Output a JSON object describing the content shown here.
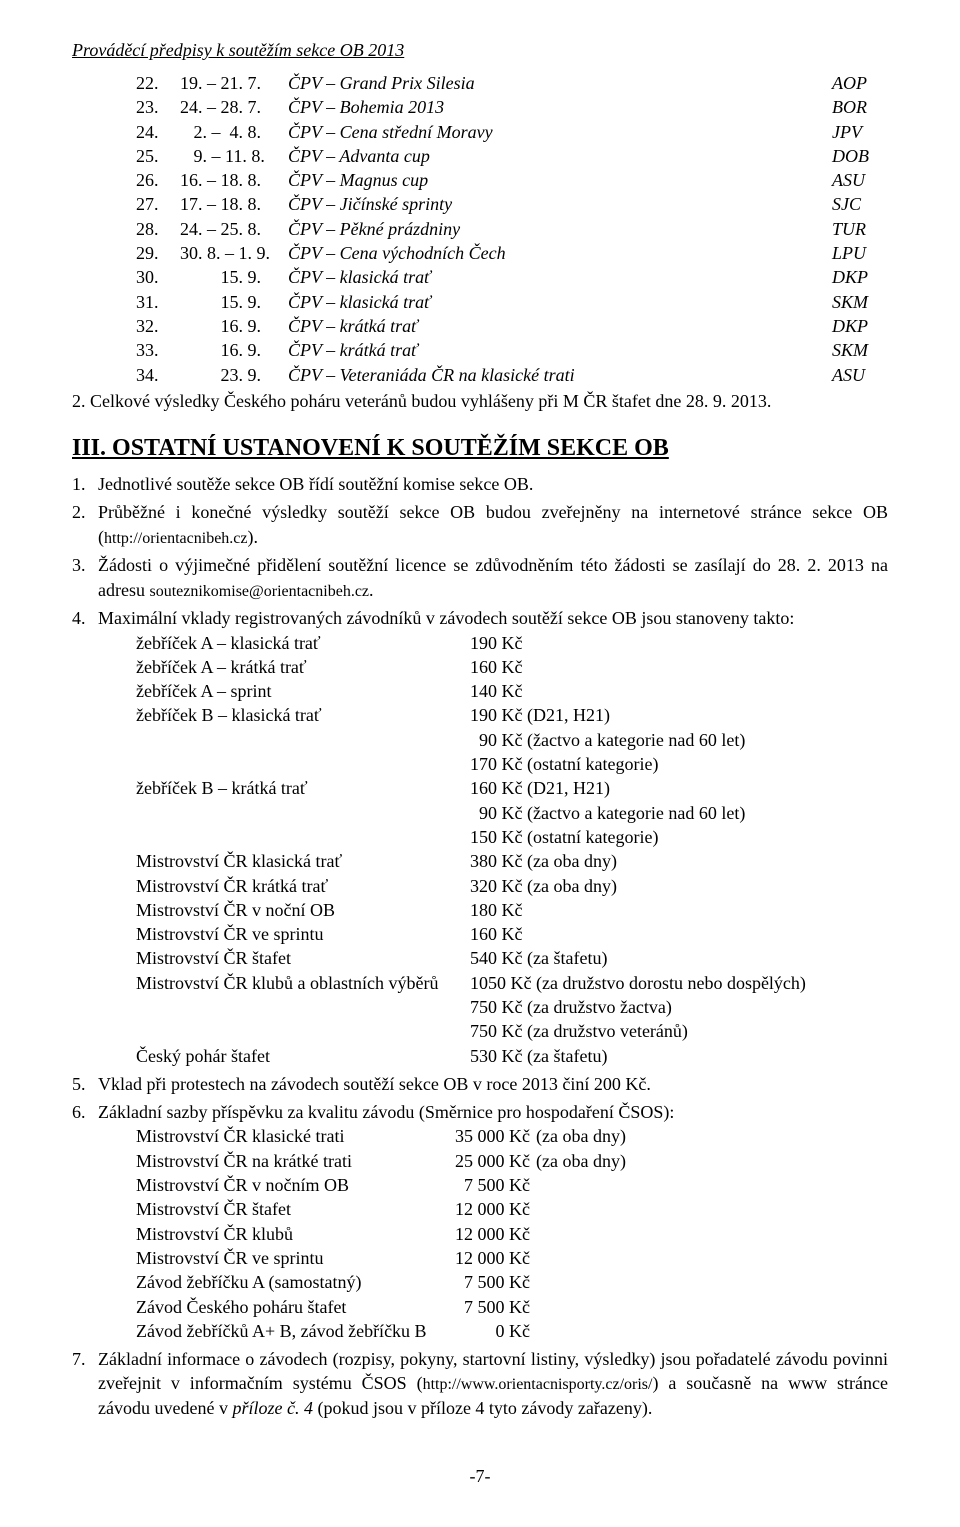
{
  "header": "Prováděcí předpisy k soutěžím sekce OB 2013",
  "races": [
    {
      "n": "22.",
      "d": "19. – 21. 7.",
      "name": "ČPV – Grand Prix Silesia",
      "code": "AOP"
    },
    {
      "n": "23.",
      "d": "24. – 28. 7.",
      "name": "ČPV – Bohemia 2013",
      "code": "BOR"
    },
    {
      "n": "24.",
      "d": "   2. –  4. 8.",
      "name": "ČPV – Cena střední Moravy",
      "code": "JPV"
    },
    {
      "n": "25.",
      "d": "   9. – 11. 8.",
      "name": "ČPV – Advanta cup",
      "code": "DOB"
    },
    {
      "n": "26.",
      "d": "16. – 18. 8.",
      "name": "ČPV – Magnus cup",
      "code": "ASU"
    },
    {
      "n": "27.",
      "d": "17. – 18. 8.",
      "name": "ČPV – Jičínské sprinty",
      "code": "SJC"
    },
    {
      "n": "28.",
      "d": "24. – 25. 8.",
      "name": "ČPV – Pěkné prázdniny",
      "code": "TUR"
    },
    {
      "n": "29.",
      "d": "30. 8. – 1. 9.",
      "name": "ČPV – Cena východních Čech",
      "code": "LPU"
    },
    {
      "n": "30.",
      "d": "         15. 9.",
      "name": "ČPV – klasická trať",
      "code": "DKP"
    },
    {
      "n": "31.",
      "d": "         15. 9.",
      "name": "ČPV – klasická trať",
      "code": "SKM"
    },
    {
      "n": "32.",
      "d": "         16. 9.",
      "name": "ČPV – krátká trať",
      "code": "DKP"
    },
    {
      "n": "33.",
      "d": "         16. 9.",
      "name": "ČPV – krátká trať",
      "code": "SKM"
    },
    {
      "n": "34.",
      "d": "         23. 9.",
      "name": "ČPV – Veteraniáda ČR na klasické trati",
      "code": "ASU"
    }
  ],
  "para2": "2. Celkové výsledky Českého poháru veteránů budou vyhlášeny při M ČR štafet dne 28. 9. 2013.",
  "sectionTitle": "III. OSTATNÍ USTANOVENÍ K SOUTĚŽÍM SEKCE OB",
  "items": {
    "i1": "Jednotlivé soutěže sekce OB řídí soutěžní komise sekce OB.",
    "i2a": "Průběžné i konečné výsledky soutěží sekce OB budou zveřejněny na internetové stránce sekce OB (",
    "i2url": "http://orientacnibeh.cz",
    "i2b": ").",
    "i3a": "Žádosti o výjimečné přidělení soutěžní licence se zdůvodněním této žádosti se zasílají do 28. 2. 2013 na adresu ",
    "i3mail": "souteznikomise@orientacnibeh.cz",
    "i3b": ".",
    "i4": "Maximální vklady registrovaných závodníků v závodech soutěží sekce OB jsou stanoveny takto:",
    "i5": "Vklad při protestech na závodech soutěží sekce OB v roce 2013 činí 200 Kč.",
    "i6": "Základní sazby příspěvku za kvalitu závodu (Směrnice pro hospodaření ČSOS):",
    "i7a": "Základní informace o závodech (rozpisy, pokyny, startovní listiny, výsledky) jsou pořadatelé závodu povinni zveřejnit v informačním systému ČSOS (",
    "i7url": "http://www.orientacnisporty.cz/oris/",
    "i7b": ") a současně na www stránce závodu uvedené v ",
    "i7c": "příloze č. 4",
    "i7d": " (pokud jsou v příloze 4 tyto závody zařazeny)."
  },
  "fees": [
    {
      "label": "žebříček A – klasická trať",
      "val": "190 Kč"
    },
    {
      "label": "žebříček A – krátká trať",
      "val": "160 Kč"
    },
    {
      "label": "žebříček A – sprint",
      "val": "140 Kč"
    },
    {
      "label": "žebříček B – klasická trať",
      "val": "190 Kč (D21, H21)"
    },
    {
      "label": "",
      "val": "  90 Kč (žactvo a kategorie nad 60 let)"
    },
    {
      "label": "",
      "val": "170 Kč (ostatní kategorie)"
    },
    {
      "label": "žebříček B – krátká trať",
      "val": "160 Kč (D21, H21)"
    },
    {
      "label": "",
      "val": "  90 Kč (žactvo a kategorie nad 60 let)"
    },
    {
      "label": "",
      "val": "150 Kč (ostatní kategorie)"
    },
    {
      "label": "Mistrovství ČR klasická trať",
      "val": "380 Kč (za oba dny)"
    },
    {
      "label": "Mistrovství ČR krátká trať",
      "val": "320 Kč (za oba dny)"
    },
    {
      "label": "Mistrovství ČR v noční OB",
      "val": "180 Kč"
    },
    {
      "label": "Mistrovství ČR ve sprintu",
      "val": "160 Kč"
    },
    {
      "label": "Mistrovství ČR štafet",
      "val": "540 Kč (za štafetu)"
    },
    {
      "label": "Mistrovství ČR klubů a oblastních výběrů",
      "val": "1050 Kč (za družstvo dorostu nebo dospělých)"
    },
    {
      "label": "",
      "val": "750 Kč (za družstvo žactva)"
    },
    {
      "label": "",
      "val": "750 Kč (za družstvo veteránů)"
    },
    {
      "label": "Český pohár štafet",
      "val": "530 Kč (za štafetu)"
    }
  ],
  "quality": [
    {
      "label": "Mistrovství ČR klasické trati",
      "amt": "35 000 Kč",
      "note": "(za oba dny)"
    },
    {
      "label": "Mistrovství ČR na krátké trati",
      "amt": "25 000 Kč",
      "note": "(za oba dny)"
    },
    {
      "label": "Mistrovství ČR v nočním OB",
      "amt": "7 500 Kč",
      "note": ""
    },
    {
      "label": "Mistrovství ČR štafet",
      "amt": "12 000 Kč",
      "note": ""
    },
    {
      "label": "Mistrovství ČR klubů",
      "amt": "12 000 Kč",
      "note": ""
    },
    {
      "label": "Mistrovství ČR ve sprintu",
      "amt": "12 000 Kč",
      "note": ""
    },
    {
      "label": "Závod žebříčku A (samostatný)",
      "amt": "7 500 Kč",
      "note": ""
    },
    {
      "label": "Závod Českého poháru štafet",
      "amt": "7 500 Kč",
      "note": ""
    },
    {
      "label": "Závod žebříčků A+ B, závod žebříčku B",
      "amt": "0 Kč",
      "note": ""
    }
  ],
  "footer": "-7-"
}
